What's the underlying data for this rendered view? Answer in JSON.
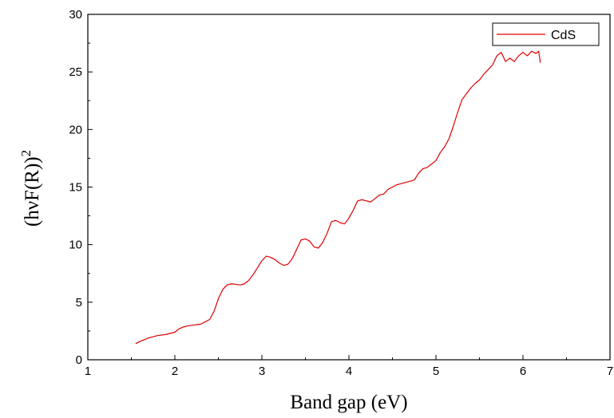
{
  "chart_data": {
    "type": "line",
    "xlabel": "Band gap (eV)",
    "ylabel_main": "(hνF(R))",
    "ylabel_sup": "2",
    "xlim": [
      1,
      7
    ],
    "ylim": [
      0,
      30
    ],
    "xticks": [
      1,
      2,
      3,
      4,
      5,
      6,
      7
    ],
    "yticks": [
      0,
      5,
      10,
      15,
      20,
      25,
      30
    ],
    "grid": false,
    "legend_position": "top-right",
    "series": [
      {
        "name": "CdS",
        "color": "#e00000",
        "x": [
          1.55,
          1.6,
          1.7,
          1.8,
          1.9,
          2.0,
          2.05,
          2.1,
          2.15,
          2.2,
          2.3,
          2.4,
          2.45,
          2.5,
          2.55,
          2.6,
          2.65,
          2.7,
          2.75,
          2.8,
          2.85,
          2.9,
          2.95,
          3.0,
          3.05,
          3.1,
          3.15,
          3.2,
          3.25,
          3.3,
          3.35,
          3.4,
          3.45,
          3.5,
          3.55,
          3.6,
          3.65,
          3.7,
          3.75,
          3.8,
          3.85,
          3.9,
          3.95,
          4.0,
          4.05,
          4.1,
          4.15,
          4.2,
          4.25,
          4.3,
          4.35,
          4.4,
          4.45,
          4.5,
          4.55,
          4.6,
          4.65,
          4.7,
          4.75,
          4.8,
          4.85,
          4.9,
          4.95,
          5.0,
          5.05,
          5.1,
          5.15,
          5.2,
          5.25,
          5.3,
          5.35,
          5.4,
          5.45,
          5.5,
          5.55,
          5.6,
          5.65,
          5.7,
          5.75,
          5.8,
          5.85,
          5.9,
          5.95,
          6.0,
          6.05,
          6.1,
          6.15,
          6.18,
          6.2
        ],
        "y": [
          1.4,
          1.6,
          1.9,
          2.1,
          2.2,
          2.4,
          2.7,
          2.85,
          2.95,
          3.0,
          3.1,
          3.5,
          4.2,
          5.3,
          6.1,
          6.5,
          6.6,
          6.55,
          6.5,
          6.6,
          6.9,
          7.4,
          8.0,
          8.6,
          9.0,
          8.9,
          8.7,
          8.4,
          8.2,
          8.3,
          8.8,
          9.6,
          10.4,
          10.5,
          10.3,
          9.8,
          9.7,
          10.2,
          11.0,
          12.0,
          12.1,
          11.9,
          11.8,
          12.3,
          13.0,
          13.8,
          13.9,
          13.8,
          13.7,
          14.0,
          14.3,
          14.4,
          14.8,
          15.0,
          15.2,
          15.3,
          15.4,
          15.5,
          15.6,
          16.2,
          16.6,
          16.7,
          17.0,
          17.3,
          18.0,
          18.5,
          19.2,
          20.3,
          21.5,
          22.6,
          23.1,
          23.6,
          24.0,
          24.3,
          24.8,
          25.2,
          25.6,
          26.4,
          26.7,
          25.9,
          26.2,
          25.9,
          26.4,
          26.7,
          26.4,
          26.8,
          26.6,
          26.8,
          25.8
        ]
      }
    ]
  }
}
